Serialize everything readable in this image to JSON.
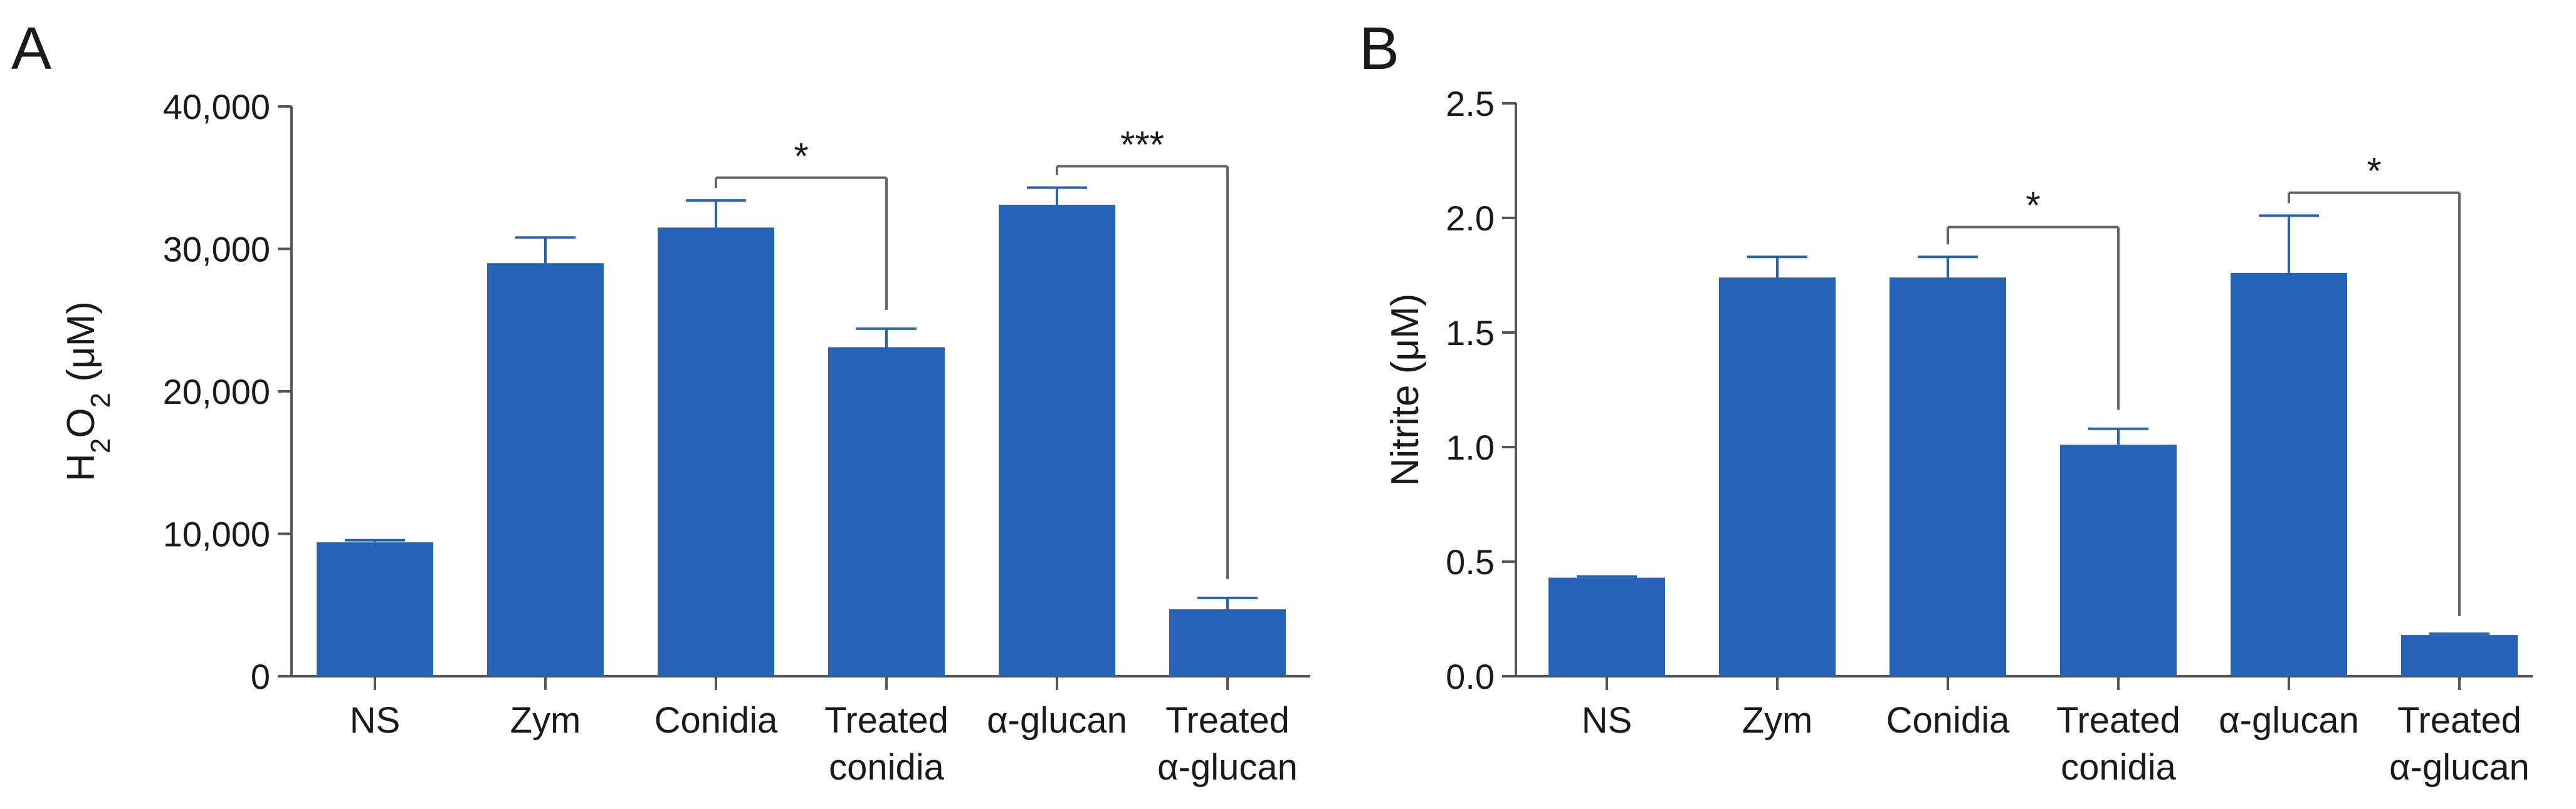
{
  "chart_data": [
    {
      "panel_label": "A",
      "type": "bar",
      "ylabel": {
        "prefix": "H",
        "sub1": "2",
        "mid": "O",
        "sub2": "2",
        "suffix": " (μM)"
      },
      "ylim": [
        0,
        40000
      ],
      "yticks": [
        {
          "value": 0,
          "label": "0"
        },
        {
          "value": 10000,
          "label": "10,000"
        },
        {
          "value": 20000,
          "label": "20,000"
        },
        {
          "value": 30000,
          "label": "30,000"
        },
        {
          "value": 40000,
          "label": "40,000"
        }
      ],
      "categories": [
        [
          "NS"
        ],
        [
          "Zym"
        ],
        [
          "Conidia"
        ],
        [
          "Treated",
          "conidia"
        ],
        [
          "α-glucan"
        ],
        [
          "Treated",
          "α-glucan"
        ]
      ],
      "values": [
        9400,
        29000,
        31500,
        23100,
        33100,
        4700
      ],
      "errors": [
        150,
        1800,
        1900,
        1300,
        1200,
        800
      ],
      "significance": [
        {
          "from": 2,
          "to": 3,
          "label": "*",
          "y": 35000
        },
        {
          "from": 4,
          "to": 5,
          "label": "***",
          "y": 35800
        }
      ]
    },
    {
      "panel_label": "B",
      "type": "bar",
      "ylabel": {
        "prefix": "Nitrite",
        "sub1": "",
        "mid": "",
        "sub2": "",
        "suffix": " (μM)"
      },
      "ylim": [
        0,
        2.5
      ],
      "yticks": [
        {
          "value": 0,
          "label": "0.0"
        },
        {
          "value": 0.5,
          "label": "0.5"
        },
        {
          "value": 1.0,
          "label": "1.0"
        },
        {
          "value": 1.5,
          "label": "1.5"
        },
        {
          "value": 2.0,
          "label": "2.0"
        },
        {
          "value": 2.5,
          "label": "2.5"
        }
      ],
      "categories": [
        [
          "NS"
        ],
        [
          "Zym"
        ],
        [
          "Conidia"
        ],
        [
          "Treated",
          "conidia"
        ],
        [
          "α-glucan"
        ],
        [
          "Treated",
          "α-glucan"
        ]
      ],
      "values": [
        0.43,
        1.74,
        1.74,
        1.01,
        1.76,
        0.18
      ],
      "errors": [
        0,
        0.09,
        0.09,
        0.07,
        0.25,
        0
      ],
      "significance": [
        {
          "from": 2,
          "to": 3,
          "label": "*",
          "y": 1.96
        },
        {
          "from": 4,
          "to": 5,
          "label": "*",
          "y": 2.11
        }
      ]
    }
  ],
  "colors": {
    "bar": "#2563b8",
    "axis": "#555555",
    "bracket": "#666666",
    "text": "#1a1a1a"
  }
}
